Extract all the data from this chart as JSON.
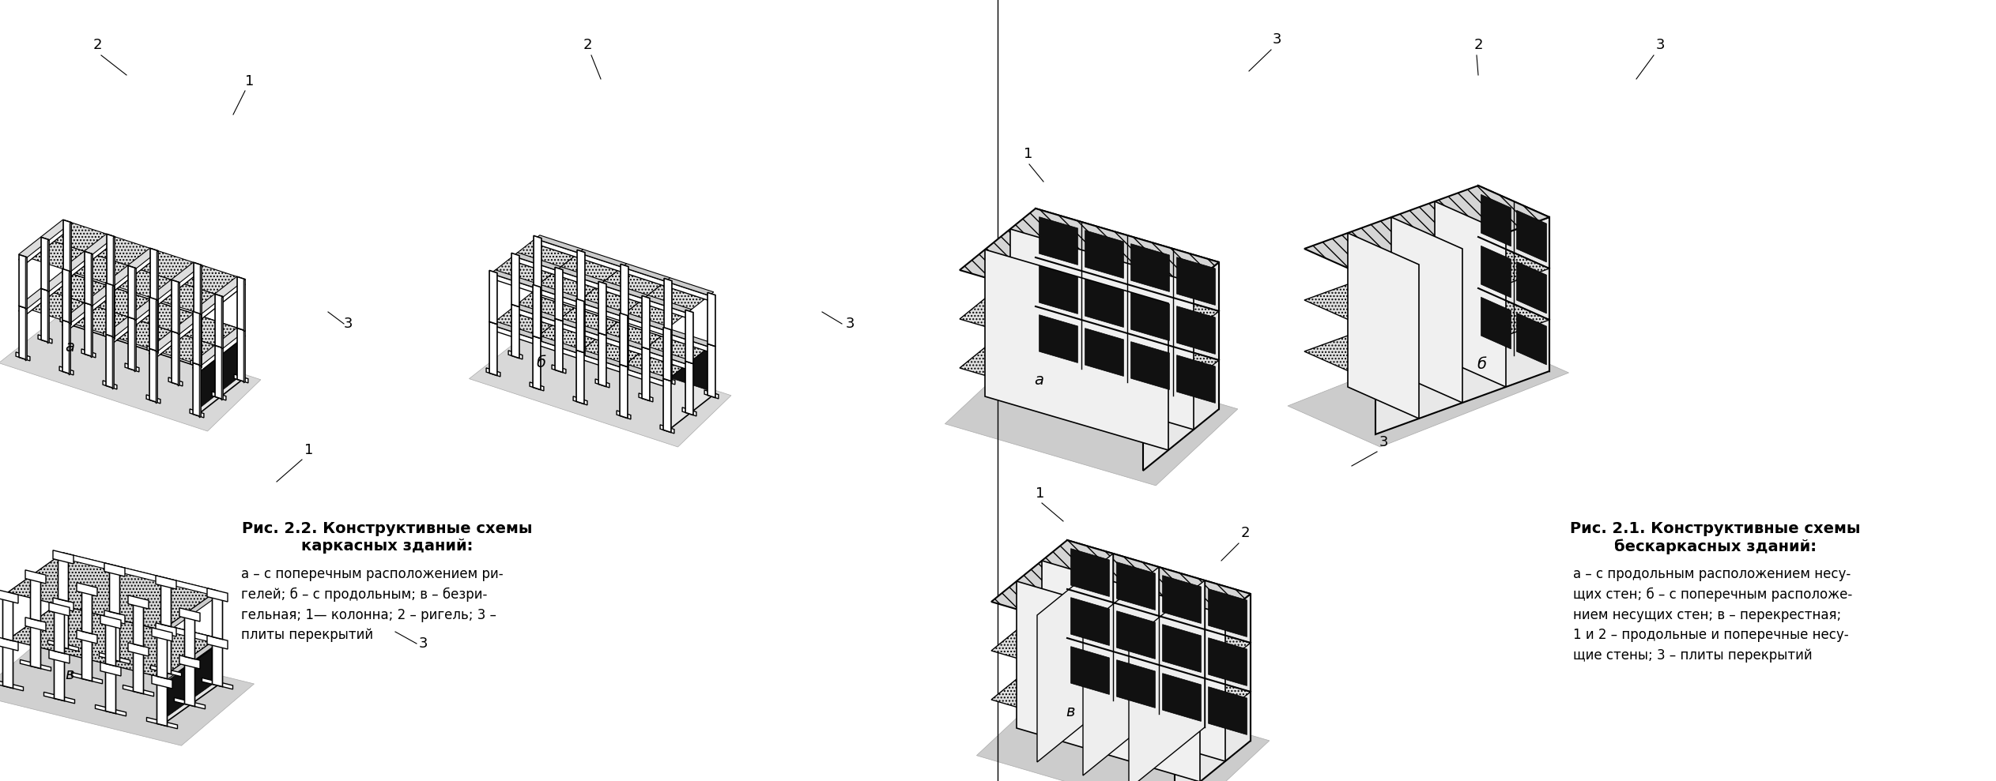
{
  "background_color": "#ffffff",
  "fig22_title": "Рис. 2.2. Конструктивные схемы",
  "fig22_title2": "каркасных зданий:",
  "fig22_caption": "а – с поперечным расположением ри-\nгелей; б – с продольным; в – безри-\nгельная; 1— колонна; 2 – ригель; 3 –\nплиты перекрытий",
  "fig21_title": "Рис. 2.1. Конструктивные схемы",
  "fig21_title2": "бескаркасных зданий:",
  "fig21_caption": "а – с продольным расположением несу-\nщих стен; б – с поперечным расположе-\nнием несущих стен; в – перекрестная;\n1 и 2 – продольные и поперечные несу-\nщие стены; 3 – плиты перекрытий",
  "label_a_left": "а",
  "label_b_left": "б",
  "label_v_left": "в",
  "label_a_right": "а",
  "label_b_right": "б",
  "label_v_right": "в",
  "title_fontsize": 14,
  "caption_fontsize": 12,
  "label_fontsize": 14,
  "num_fontsize": 13
}
